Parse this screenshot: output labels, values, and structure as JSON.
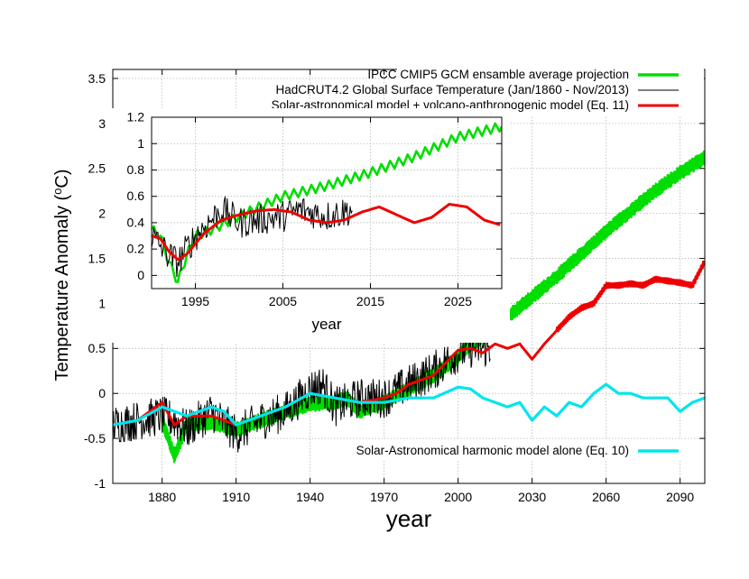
{
  "chart_data": [
    {
      "type": "line",
      "xlabel": "year",
      "ylabel": "Temperature Anomaly (",
      "ylabel_sup": "o",
      "ylabel_end": "C)",
      "xlim": [
        1860,
        2100
      ],
      "ylim": [
        -1,
        3.6
      ],
      "xticks": [
        1880,
        1910,
        1940,
        1970,
        2000,
        2030,
        2060,
        2090
      ],
      "yticks": [
        -1,
        -0.5,
        0,
        0.5,
        1,
        1.5,
        2,
        2.5,
        3,
        3.5
      ],
      "grid": true,
      "legend": "top-right",
      "series": [
        {
          "name": "IPCC CMIP5 GCM ensamble average projection",
          "color": "#00dd00",
          "style": "band",
          "x": [
            1880,
            1885,
            1890,
            1900,
            1910,
            1920,
            1930,
            1940,
            1950,
            1955,
            1960,
            1965,
            1970,
            1980,
            1990,
            2000,
            2005,
            2010,
            2020,
            2030,
            2040,
            2050,
            2060,
            2070,
            2080,
            2090,
            2100
          ],
          "y": [
            -0.3,
            -0.7,
            -0.35,
            -0.32,
            -0.4,
            -0.3,
            -0.2,
            -0.12,
            -0.1,
            -0.05,
            -0.2,
            -0.15,
            -0.1,
            0.05,
            0.2,
            0.4,
            0.55,
            0.62,
            0.85,
            1.07,
            1.3,
            1.55,
            1.8,
            2.03,
            2.25,
            2.45,
            2.62
          ],
          "band": 0.08
        },
        {
          "name": "HadCRUT4.2 Global Surface Temperature (Jan/1860 - Nov/2013)",
          "color": "#000000",
          "style": "noisy",
          "x": [
            1860,
            1870,
            1880,
            1885,
            1890,
            1900,
            1910,
            1920,
            1930,
            1940,
            1945,
            1950,
            1960,
            1970,
            1980,
            1990,
            2000,
            2005,
            2010,
            2013
          ],
          "y": [
            -0.35,
            -0.3,
            -0.25,
            -0.3,
            -0.4,
            -0.2,
            -0.45,
            -0.3,
            -0.2,
            0.05,
            0.1,
            -0.15,
            -0.05,
            -0.05,
            0.1,
            0.25,
            0.45,
            0.5,
            0.5,
            0.5
          ],
          "noise": 0.22
        },
        {
          "name": "Solar-astronomical model + volcano-anthropogenic model (Eq. 11)",
          "color": "#ee0000",
          "style": "line",
          "x": [
            1860,
            1870,
            1880,
            1885,
            1890,
            1900,
            1910,
            1920,
            1930,
            1940,
            1950,
            1960,
            1970,
            1975,
            1980,
            1985,
            1990,
            2000,
            2005,
            2010,
            2015,
            2020,
            2025,
            2030,
            2035,
            2040,
            2045,
            2050,
            2055,
            2060,
            2065,
            2070,
            2075,
            2080,
            2085,
            2090,
            2095,
            2100
          ],
          "y": [
            -0.35,
            -0.3,
            -0.1,
            -0.35,
            -0.25,
            -0.25,
            -0.35,
            -0.25,
            -0.15,
            0.0,
            -0.05,
            -0.1,
            -0.05,
            0.0,
            0.1,
            0.15,
            0.2,
            0.48,
            0.5,
            0.45,
            0.55,
            0.5,
            0.55,
            0.38,
            0.55,
            0.7,
            0.85,
            0.95,
            1.0,
            1.2,
            1.2,
            1.22,
            1.2,
            1.27,
            1.25,
            1.23,
            1.2,
            1.47
          ]
        },
        {
          "name": "Solar-Astronomical harmonic model alone (Eq. 10)",
          "color": "#00e5ee",
          "style": "line",
          "x": [
            1860,
            1870,
            1880,
            1890,
            1900,
            1905,
            1910,
            1920,
            1930,
            1940,
            1950,
            1960,
            1970,
            1980,
            1990,
            2000,
            2005,
            2010,
            2015,
            2020,
            2025,
            2030,
            2035,
            2040,
            2045,
            2050,
            2055,
            2060,
            2065,
            2070,
            2075,
            2080,
            2085,
            2090,
            2095,
            2100
          ],
          "y": [
            -0.35,
            -0.3,
            -0.15,
            -0.25,
            -0.15,
            -0.2,
            -0.35,
            -0.25,
            -0.15,
            0.0,
            -0.05,
            -0.1,
            -0.1,
            -0.05,
            -0.05,
            0.07,
            0.05,
            -0.05,
            -0.1,
            -0.15,
            -0.1,
            -0.3,
            -0.15,
            -0.25,
            -0.1,
            -0.15,
            0.0,
            0.1,
            0.0,
            0.0,
            -0.05,
            -0.05,
            -0.05,
            -0.2,
            -0.1,
            -0.05
          ]
        }
      ]
    },
    {
      "type": "line",
      "xlabel": "year",
      "xlim": [
        1990,
        2030
      ],
      "ylim": [
        -0.1,
        1.2
      ],
      "xticks": [
        1995,
        2005,
        2015,
        2025
      ],
      "yticks": [
        0,
        0.2,
        0.4,
        0.6,
        0.8,
        1,
        1.2
      ],
      "grid": true,
      "series": [
        {
          "color": "#00dd00",
          "style": "zigzag",
          "x": [
            1990,
            1991,
            1992,
            1993,
            1994,
            1995,
            1997,
            2000,
            2005,
            2010,
            2015,
            2020,
            2025,
            2030
          ],
          "y": [
            0.35,
            0.3,
            0.1,
            -0.05,
            0.15,
            0.3,
            0.35,
            0.45,
            0.6,
            0.68,
            0.78,
            0.9,
            1.05,
            1.13
          ],
          "amp": 0.035
        },
        {
          "color": "#000000",
          "style": "noisy",
          "x": [
            1990,
            1992,
            1993,
            1995,
            1998,
            2000,
            2005,
            2007,
            2010,
            2013
          ],
          "y": [
            0.3,
            0.15,
            0.1,
            0.3,
            0.5,
            0.4,
            0.45,
            0.5,
            0.45,
            0.5
          ],
          "noise": 0.12
        },
        {
          "color": "#ee0000",
          "style": "line",
          "x": [
            1990,
            1991,
            1992,
            1993,
            1994,
            1996,
            1998,
            2000,
            2002,
            2004,
            2006,
            2008,
            2010,
            2012,
            2014,
            2016,
            2018,
            2020,
            2022,
            2024,
            2026,
            2028,
            2030
          ],
          "y": [
            0.3,
            0.28,
            0.18,
            0.12,
            0.16,
            0.32,
            0.42,
            0.46,
            0.49,
            0.5,
            0.48,
            0.42,
            0.4,
            0.42,
            0.48,
            0.52,
            0.46,
            0.4,
            0.44,
            0.54,
            0.52,
            0.42,
            0.38
          ]
        }
      ]
    }
  ]
}
